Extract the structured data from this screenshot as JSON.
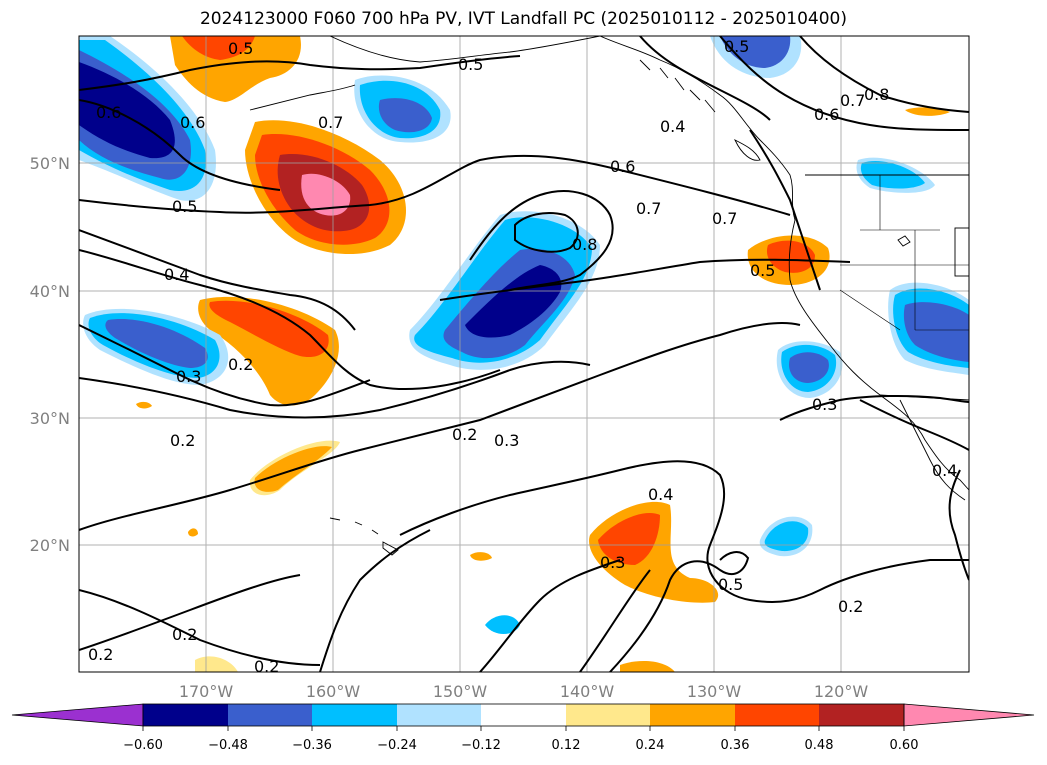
{
  "title": "2024123000 F060 700 hPa PV, IVT Landfall PC (2025010112 - 2025010400)",
  "map": {
    "lon_range": [
      180,
      110
    ],
    "lat_range": [
      10,
      60
    ],
    "lat_ticks": [
      {
        "label": "20°N",
        "value": 20
      },
      {
        "label": "30°N",
        "value": 30
      },
      {
        "label": "40°N",
        "value": 40
      },
      {
        "label": "50°N",
        "value": 50
      }
    ],
    "lon_ticks": [
      {
        "label": "170°W",
        "value": 170
      },
      {
        "label": "160°W",
        "value": 160
      },
      {
        "label": "150°W",
        "value": 150
      },
      {
        "label": "140°W",
        "value": 140
      },
      {
        "label": "130°W",
        "value": 130
      },
      {
        "label": "120°W",
        "value": 120
      }
    ],
    "gridlines": true,
    "contour_labels": [
      "0.5",
      "0.5",
      "0.5",
      "0.6",
      "0.6",
      "0.7",
      "0.7",
      "0.8",
      "0.8",
      "0.7",
      "0.6",
      "0.4",
      "0.5",
      "0.4",
      "0.5",
      "0.3",
      "0.2",
      "0.2",
      "0.3",
      "0.3",
      "0.2",
      "0.4",
      "0.3",
      "0.5",
      "0.2",
      "0.2",
      "0.2",
      "0.2",
      "0.6",
      "0.4",
      "0.7"
    ]
  },
  "colorbar": {
    "ticks": [
      "−0.60",
      "−0.48",
      "−0.36",
      "−0.24",
      "−0.12",
      "0.12",
      "0.24",
      "0.36",
      "0.48",
      "0.60"
    ],
    "colors": {
      "under": "#9b30d0",
      "bins": [
        "#9b30d0",
        "#00008b",
        "#3a5fcd",
        "#00bfff",
        "#b0e2ff",
        "#ffffff",
        "#ffe88c",
        "#ffa500",
        "#ff4500",
        "#b22222",
        "#ff88b0"
      ],
      "over": "#ff88b0"
    }
  }
}
